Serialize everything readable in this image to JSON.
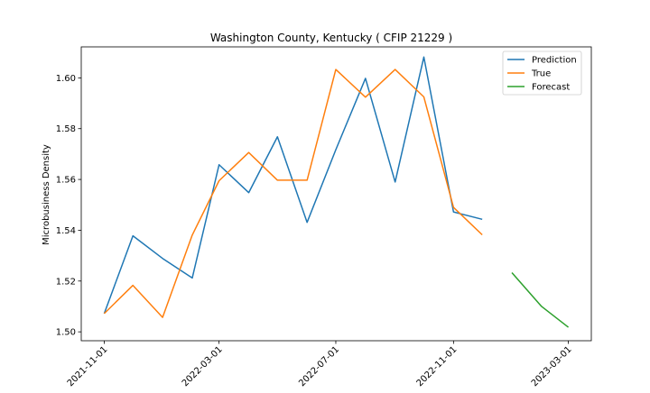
{
  "chart_data": {
    "type": "line",
    "title": "Washington County, Kentucky ( CFIP 21229 )",
    "xlabel": "",
    "ylabel": "Microbusiness Density",
    "x_ticks": [
      "2021-11-01",
      "2022-03-01",
      "2022-07-01",
      "2022-11-01",
      "2023-03-01"
    ],
    "y_ticks": [
      "1.50",
      "1.52",
      "1.54",
      "1.56",
      "1.58",
      "1.60"
    ],
    "x_range": [
      "2021-10-08",
      "2023-03-25"
    ],
    "ylim": [
      1.4965,
      1.6122
    ],
    "grid": false,
    "legend_position": "top-right",
    "series": [
      {
        "name": "Prediction",
        "color": "#1f77b4",
        "x": [
          "2021-11-01",
          "2021-12-01",
          "2022-01-01",
          "2022-02-01",
          "2022-03-01",
          "2022-04-01",
          "2022-05-01",
          "2022-06-01",
          "2022-07-01",
          "2022-08-01",
          "2022-09-01",
          "2022-10-01",
          "2022-11-01",
          "2022-12-01"
        ],
        "values": [
          1.5072,
          1.5378,
          1.5289,
          1.5212,
          1.5658,
          1.5548,
          1.5768,
          1.5431,
          1.5717,
          1.5998,
          1.559,
          1.6082,
          1.5472,
          1.5443
        ]
      },
      {
        "name": "True",
        "color": "#ff7f0e",
        "x": [
          "2021-11-01",
          "2021-12-01",
          "2022-01-01",
          "2022-02-01",
          "2022-03-01",
          "2022-04-01",
          "2022-05-01",
          "2022-06-01",
          "2022-07-01",
          "2022-08-01",
          "2022-09-01",
          "2022-10-01",
          "2022-11-01",
          "2022-12-01"
        ],
        "values": [
          1.5072,
          1.5183,
          1.5057,
          1.5381,
          1.5595,
          1.5706,
          1.5597,
          1.5597,
          1.6033,
          1.5924,
          1.6033,
          1.5925,
          1.549,
          1.5382
        ]
      },
      {
        "name": "Forecast",
        "color": "#2ca02c",
        "x": [
          "2023-01-01",
          "2023-02-01",
          "2023-03-01"
        ],
        "values": [
          1.5233,
          1.51,
          1.5018
        ]
      }
    ]
  }
}
